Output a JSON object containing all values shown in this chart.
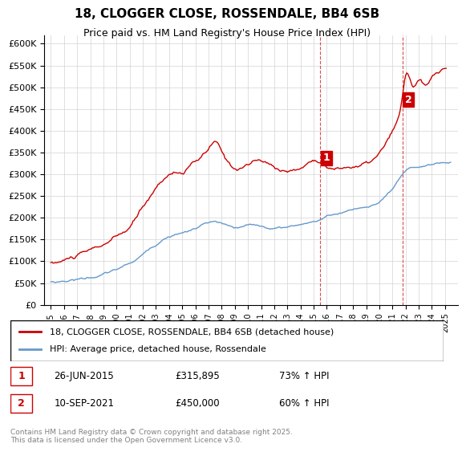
{
  "title": "18, CLOGGER CLOSE, ROSSENDALE, BB4 6SB",
  "subtitle": "Price paid vs. HM Land Registry's House Price Index (HPI)",
  "red_label": "18, CLOGGER CLOSE, ROSSENDALE, BB4 6SB (detached house)",
  "blue_label": "HPI: Average price, detached house, Rossendale",
  "marker1_date": "26-JUN-2015",
  "marker1_price": 315895,
  "marker1_text": "73% ↑ HPI",
  "marker2_date": "10-SEP-2021",
  "marker2_price": 450000,
  "marker2_text": "60% ↑ HPI",
  "footnote": "Contains HM Land Registry data © Crown copyright and database right 2025.\nThis data is licensed under the Open Government Licence v3.0.",
  "red_color": "#cc0000",
  "blue_color": "#6699cc",
  "vline_color": "#cc0000",
  "ylim": [
    0,
    620000
  ],
  "yticks": [
    0,
    50000,
    100000,
    150000,
    200000,
    250000,
    300000,
    350000,
    400000,
    450000,
    500000,
    550000,
    600000
  ],
  "xlim_start": 1994.5,
  "xlim_end": 2026.0
}
